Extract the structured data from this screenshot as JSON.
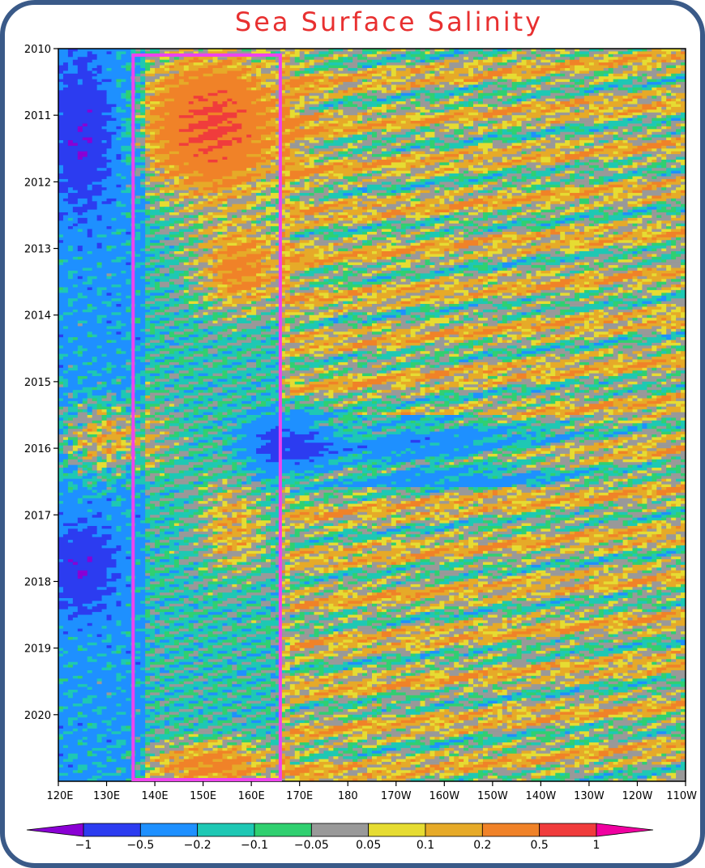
{
  "chart_data": {
    "type": "heatmap",
    "title": "Sea Surface Salinity",
    "xlabel": "",
    "ylabel": "",
    "x_ticks": [
      "120E",
      "130E",
      "140E",
      "150E",
      "160E",
      "170E",
      "180",
      "170W",
      "160W",
      "150W",
      "140W",
      "130W",
      "120W",
      "110W"
    ],
    "y_ticks": [
      "2010",
      "2011",
      "2012",
      "2013",
      "2014",
      "2015",
      "2016",
      "2017",
      "2018",
      "2019",
      "2020"
    ],
    "xlim": [
      120,
      250
    ],
    "ylim": [
      2010.0,
      2021.0
    ],
    "highlight_box": {
      "lon_range": [
        135.5,
        166
      ],
      "time_range": [
        2010.0,
        2021.0
      ],
      "color": "#ee44ee"
    },
    "colorbar": {
      "labels": [
        "-1",
        "-0.5",
        "-0.2",
        "-0.1",
        "-0.05",
        "0.05",
        "0.1",
        "0.2",
        "0.5",
        "1"
      ],
      "bin_colors": [
        "#8a00d4",
        "#2c3cf0",
        "#1e90ff",
        "#1ec8b4",
        "#30d070",
        "#999999",
        "#e6dc32",
        "#e6aa28",
        "#f08228",
        "#f03c3c",
        "#f000a0"
      ]
    },
    "anomaly_features": [
      {
        "lon": [
          138,
          166
        ],
        "time": [
          2010.1,
          2012.2
        ],
        "sign": "positive",
        "peak": 0.5
      },
      {
        "lon": [
          150,
          166
        ],
        "time": [
          2012.7,
          2013.9
        ],
        "sign": "positive",
        "peak": 0.3
      },
      {
        "lon": [
          120,
          140
        ],
        "time": [
          2015.3,
          2016.4
        ],
        "sign": "positive",
        "peak": 0.3
      },
      {
        "lon": [
          161,
          175
        ],
        "time": [
          2015.6,
          2016.3
        ],
        "sign": "negative",
        "peak": -0.5
      },
      {
        "lon": [
          150,
          162
        ],
        "time": [
          2016.5,
          2017.9
        ],
        "sign": "positive",
        "peak": 0.2
      },
      {
        "lon": [
          138,
          166
        ],
        "time": [
          2020.5,
          2021.0
        ],
        "sign": "positive",
        "peak": 0.3
      },
      {
        "lon": [
          120,
          130
        ],
        "time": [
          2010.2,
          2012.4
        ],
        "sign": "negative",
        "peak": -0.5
      },
      {
        "lon": [
          120,
          130
        ],
        "time": [
          2017.2,
          2018.4
        ],
        "sign": "negative",
        "peak": -0.5
      }
    ]
  }
}
